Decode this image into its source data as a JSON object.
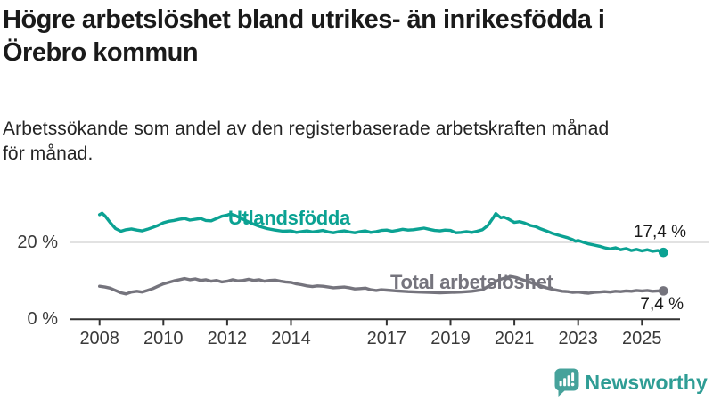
{
  "header": {
    "title": "Högre arbetslöshet bland utrikes- än inrikesfödda i Örebro kommun",
    "title_lines": [
      "Högre arbetslöshet bland utrikes- än inrikesfödda i",
      "Örebro kommun"
    ],
    "subtitle": "Arbetssökande som andel av den registerbaserade arbetskraften månad för månad.",
    "subtitle_lines": [
      "Arbetssökande som andel av den registerbaserade arbetskraften månad",
      "för månad."
    ]
  },
  "chart_data": {
    "type": "line",
    "title": "Högre arbetslöshet bland utrikes- än inrikesfödda i Örebro kommun",
    "subtitle": "Arbetssökande som andel av den registerbaserade arbetskraften månad för månad.",
    "xlabel": "",
    "ylabel": "%",
    "x_range": [
      2008,
      2025.75
    ],
    "ylim": [
      0,
      30
    ],
    "grid": "horizontal line at 20 % only",
    "legend_position": "inline labels on lines, end-value labels at right",
    "yticks": [
      {
        "value": 0,
        "label": "0 %"
      },
      {
        "value": 20,
        "label": "20 %"
      }
    ],
    "xticks": [
      {
        "value": 2008,
        "label": "2008"
      },
      {
        "value": 2010,
        "label": "2010"
      },
      {
        "value": 2012,
        "label": "2012"
      },
      {
        "value": 2014,
        "label": "2014"
      },
      {
        "value": 2017,
        "label": "2017"
      },
      {
        "value": 2019,
        "label": "2019"
      },
      {
        "value": 2021,
        "label": "2021"
      },
      {
        "value": 2023,
        "label": "2023"
      },
      {
        "value": 2025,
        "label": "2025"
      }
    ],
    "series": [
      {
        "name": "Utlandsfödda",
        "color": "#0ba293",
        "end_label": "17,4 %",
        "end_value": 17.4,
        "points": [
          [
            2008.0,
            27.2
          ],
          [
            2008.08,
            27.6
          ],
          [
            2008.17,
            26.9
          ],
          [
            2008.33,
            25.2
          ],
          [
            2008.5,
            23.6
          ],
          [
            2008.67,
            22.9
          ],
          [
            2008.83,
            23.3
          ],
          [
            2009.0,
            23.5
          ],
          [
            2009.17,
            23.2
          ],
          [
            2009.33,
            23.0
          ],
          [
            2009.5,
            23.4
          ],
          [
            2009.67,
            23.9
          ],
          [
            2009.83,
            24.4
          ],
          [
            2010.0,
            25.1
          ],
          [
            2010.17,
            25.5
          ],
          [
            2010.33,
            25.7
          ],
          [
            2010.5,
            26.0
          ],
          [
            2010.67,
            26.2
          ],
          [
            2010.83,
            25.8
          ],
          [
            2011.0,
            26.0
          ],
          [
            2011.17,
            26.2
          ],
          [
            2011.33,
            25.7
          ],
          [
            2011.5,
            25.6
          ],
          [
            2011.67,
            26.2
          ],
          [
            2011.83,
            26.8
          ],
          [
            2012.0,
            27.1
          ],
          [
            2012.1,
            27.4
          ],
          [
            2012.25,
            27.0
          ],
          [
            2012.5,
            26.0
          ],
          [
            2012.75,
            25.0
          ],
          [
            2013.0,
            24.2
          ],
          [
            2013.25,
            23.6
          ],
          [
            2013.5,
            23.2
          ],
          [
            2013.75,
            22.9
          ],
          [
            2014.0,
            23.0
          ],
          [
            2014.17,
            22.6
          ],
          [
            2014.33,
            22.8
          ],
          [
            2014.5,
            23.0
          ],
          [
            2014.67,
            22.7
          ],
          [
            2014.83,
            22.9
          ],
          [
            2015.0,
            23.1
          ],
          [
            2015.17,
            22.7
          ],
          [
            2015.33,
            22.5
          ],
          [
            2015.5,
            22.8
          ],
          [
            2015.67,
            23.0
          ],
          [
            2015.83,
            22.7
          ],
          [
            2016.0,
            22.5
          ],
          [
            2016.17,
            22.8
          ],
          [
            2016.33,
            23.0
          ],
          [
            2016.5,
            22.6
          ],
          [
            2016.67,
            22.8
          ],
          [
            2016.83,
            23.1
          ],
          [
            2017.0,
            23.2
          ],
          [
            2017.17,
            22.9
          ],
          [
            2017.33,
            23.1
          ],
          [
            2017.5,
            23.4
          ],
          [
            2017.67,
            23.2
          ],
          [
            2017.83,
            23.3
          ],
          [
            2018.0,
            23.5
          ],
          [
            2018.17,
            23.7
          ],
          [
            2018.33,
            23.4
          ],
          [
            2018.5,
            23.1
          ],
          [
            2018.67,
            23.0
          ],
          [
            2018.83,
            23.2
          ],
          [
            2019.0,
            23.1
          ],
          [
            2019.17,
            22.5
          ],
          [
            2019.33,
            22.6
          ],
          [
            2019.5,
            22.8
          ],
          [
            2019.67,
            22.6
          ],
          [
            2019.83,
            22.9
          ],
          [
            2020.0,
            23.3
          ],
          [
            2020.17,
            24.4
          ],
          [
            2020.33,
            26.3
          ],
          [
            2020.42,
            27.5
          ],
          [
            2020.5,
            26.9
          ],
          [
            2020.58,
            26.4
          ],
          [
            2020.67,
            26.6
          ],
          [
            2020.83,
            26.0
          ],
          [
            2021.0,
            25.2
          ],
          [
            2021.17,
            25.4
          ],
          [
            2021.33,
            25.0
          ],
          [
            2021.5,
            24.4
          ],
          [
            2021.67,
            24.1
          ],
          [
            2021.83,
            23.5
          ],
          [
            2022.0,
            23.0
          ],
          [
            2022.17,
            22.4
          ],
          [
            2022.33,
            22.0
          ],
          [
            2022.5,
            21.6
          ],
          [
            2022.67,
            21.2
          ],
          [
            2022.83,
            20.7
          ],
          [
            2022.92,
            20.3
          ],
          [
            2023.0,
            20.5
          ],
          [
            2023.17,
            20.0
          ],
          [
            2023.33,
            19.6
          ],
          [
            2023.5,
            19.3
          ],
          [
            2023.67,
            19.0
          ],
          [
            2023.83,
            18.6
          ],
          [
            2024.0,
            18.3
          ],
          [
            2024.17,
            18.6
          ],
          [
            2024.33,
            18.1
          ],
          [
            2024.5,
            18.4
          ],
          [
            2024.67,
            17.9
          ],
          [
            2024.83,
            18.2
          ],
          [
            2025.0,
            17.8
          ],
          [
            2025.17,
            18.1
          ],
          [
            2025.33,
            17.7
          ],
          [
            2025.5,
            17.9
          ],
          [
            2025.67,
            17.4
          ]
        ]
      },
      {
        "name": "Total arbetslöshet",
        "color": "#75747d",
        "end_label": "7,4 %",
        "end_value": 7.4,
        "points": [
          [
            2008.0,
            8.6
          ],
          [
            2008.17,
            8.4
          ],
          [
            2008.33,
            8.1
          ],
          [
            2008.5,
            7.5
          ],
          [
            2008.67,
            6.9
          ],
          [
            2008.83,
            6.6
          ],
          [
            2009.0,
            7.1
          ],
          [
            2009.17,
            7.3
          ],
          [
            2009.33,
            7.1
          ],
          [
            2009.5,
            7.5
          ],
          [
            2009.67,
            8.0
          ],
          [
            2009.83,
            8.6
          ],
          [
            2010.0,
            9.2
          ],
          [
            2010.17,
            9.6
          ],
          [
            2010.33,
            10.0
          ],
          [
            2010.5,
            10.3
          ],
          [
            2010.67,
            10.6
          ],
          [
            2010.83,
            10.3
          ],
          [
            2011.0,
            10.5
          ],
          [
            2011.17,
            10.1
          ],
          [
            2011.33,
            10.3
          ],
          [
            2011.5,
            9.9
          ],
          [
            2011.67,
            10.1
          ],
          [
            2011.83,
            9.7
          ],
          [
            2012.0,
            9.9
          ],
          [
            2012.17,
            10.3
          ],
          [
            2012.33,
            10.0
          ],
          [
            2012.5,
            10.1
          ],
          [
            2012.67,
            10.4
          ],
          [
            2012.83,
            10.1
          ],
          [
            2013.0,
            10.3
          ],
          [
            2013.17,
            9.9
          ],
          [
            2013.33,
            10.1
          ],
          [
            2013.5,
            10.2
          ],
          [
            2013.67,
            9.9
          ],
          [
            2013.83,
            9.7
          ],
          [
            2014.0,
            9.6
          ],
          [
            2014.17,
            9.2
          ],
          [
            2014.33,
            9.0
          ],
          [
            2014.5,
            8.7
          ],
          [
            2014.67,
            8.5
          ],
          [
            2014.83,
            8.7
          ],
          [
            2015.0,
            8.6
          ],
          [
            2015.17,
            8.4
          ],
          [
            2015.33,
            8.2
          ],
          [
            2015.5,
            8.3
          ],
          [
            2015.67,
            8.4
          ],
          [
            2015.83,
            8.2
          ],
          [
            2016.0,
            7.9
          ],
          [
            2016.17,
            8.0
          ],
          [
            2016.33,
            8.1
          ],
          [
            2016.5,
            7.7
          ],
          [
            2016.67,
            7.5
          ],
          [
            2016.83,
            7.7
          ],
          [
            2017.0,
            7.6
          ],
          [
            2017.33,
            7.4
          ],
          [
            2017.67,
            7.2
          ],
          [
            2018.0,
            7.1
          ],
          [
            2018.33,
            7.0
          ],
          [
            2018.67,
            6.9
          ],
          [
            2019.0,
            7.0
          ],
          [
            2019.33,
            7.1
          ],
          [
            2019.67,
            7.3
          ],
          [
            2020.0,
            7.7
          ],
          [
            2020.25,
            8.9
          ],
          [
            2020.5,
            10.2
          ],
          [
            2020.75,
            10.9
          ],
          [
            2020.92,
            11.1
          ],
          [
            2021.08,
            10.8
          ],
          [
            2021.25,
            10.3
          ],
          [
            2021.5,
            9.6
          ],
          [
            2021.75,
            8.9
          ],
          [
            2022.0,
            8.2
          ],
          [
            2022.25,
            7.7
          ],
          [
            2022.5,
            7.3
          ],
          [
            2022.67,
            7.2
          ],
          [
            2022.83,
            7.0
          ],
          [
            2023.0,
            7.1
          ],
          [
            2023.17,
            6.9
          ],
          [
            2023.33,
            6.8
          ],
          [
            2023.5,
            7.0
          ],
          [
            2023.67,
            7.1
          ],
          [
            2023.83,
            7.2
          ],
          [
            2024.0,
            7.1
          ],
          [
            2024.17,
            7.3
          ],
          [
            2024.33,
            7.2
          ],
          [
            2024.5,
            7.4
          ],
          [
            2024.67,
            7.3
          ],
          [
            2024.83,
            7.5
          ],
          [
            2025.0,
            7.4
          ],
          [
            2025.17,
            7.5
          ],
          [
            2025.33,
            7.3
          ],
          [
            2025.5,
            7.4
          ],
          [
            2025.67,
            7.4
          ]
        ]
      }
    ]
  },
  "colors": {
    "title": "#1a1a1a",
    "axis": "#333333",
    "tick_label": "#3a3a3a",
    "grid": "#d9d9d9",
    "teal": "#0ba293",
    "gray": "#75747d",
    "brand": "#2f9d95",
    "brand_icon": "#46a29b"
  },
  "footer": {
    "brand": "Newsworthy",
    "logo_icon": "bar-chart-speech-bubble-icon"
  }
}
